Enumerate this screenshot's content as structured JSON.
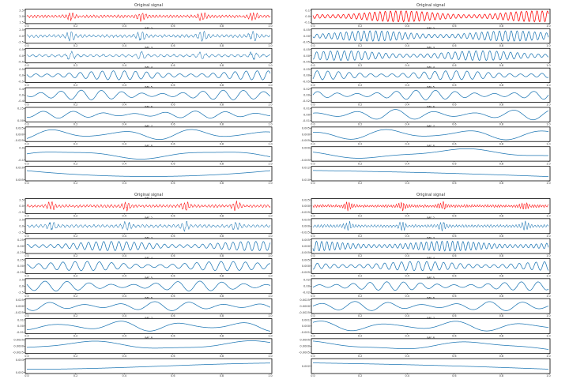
{
  "colors": {
    "original": "#ff0000",
    "imf": "#1f77b4",
    "axis": "#000000",
    "text": "#333333"
  },
  "chart_data": [
    {
      "type": "line",
      "panel": "top-left",
      "title": "Original signal",
      "x_ticks": [
        "0.0",
        "0.2",
        "0.4",
        "0.6",
        "0.8",
        "1.0"
      ],
      "xlim": [
        0,
        1
      ],
      "rows": [
        {
          "label": "",
          "y_ticks": [
            "2.5",
            "2.0",
            "1.5"
          ],
          "color": "original",
          "kind": "bursts",
          "freq": 70,
          "amp": 0.85,
          "bursts": [
            0.18,
            0.47,
            0.72,
            0.93
          ]
        },
        {
          "label": "IMF 2",
          "y_ticks": [
            "2.5",
            "0.0",
            "-2.5"
          ],
          "color": "imf",
          "kind": "bursts",
          "freq": 55,
          "amp": 0.9,
          "bursts": [
            0.18,
            0.47,
            0.72,
            0.93
          ]
        },
        {
          "label": "IMF 3",
          "y_ticks": [
            "0.5",
            "0.0",
            "-0.5"
          ],
          "color": "imf",
          "kind": "bursts",
          "freq": 38,
          "amp": 0.8,
          "bursts": [
            0.18,
            0.47,
            0.72,
            0.93
          ]
        },
        {
          "label": "IMF 4",
          "y_ticks": [
            "0.5",
            "0.0",
            "-0.5"
          ],
          "color": "imf",
          "kind": "wave",
          "freq": 22,
          "amp": 0.7
        },
        {
          "label": "IMF 5",
          "y_ticks": [
            "0.4",
            "0.0",
            "-0.4"
          ],
          "color": "imf",
          "kind": "wave",
          "freq": 12,
          "amp": 0.75
        },
        {
          "label": "IMF 6",
          "y_ticks": [
            "0.25",
            "0.00"
          ],
          "color": "imf",
          "kind": "wave",
          "freq": 8,
          "amp": 0.55
        },
        {
          "label": "IMF 7",
          "y_ticks": [
            "0.025",
            "0.000",
            "-0.025"
          ],
          "color": "imf",
          "kind": "wave",
          "freq": 3.5,
          "amp": 0.85
        },
        {
          "label": "IMF 8",
          "y_ticks": [
            "0.0",
            "-0.1"
          ],
          "color": "imf",
          "kind": "wave",
          "freq": 1.6,
          "amp": 0.8
        },
        {
          "label": "",
          "y_ticks": [
            "0.010",
            "0.005"
          ],
          "color": "imf",
          "kind": "trend",
          "shape": "u"
        }
      ]
    },
    {
      "type": "line",
      "panel": "top-right",
      "title": "Original signal",
      "x_ticks": [
        "0.0",
        "0.2",
        "0.4",
        "0.6",
        "0.8",
        "1.0"
      ],
      "xlim": [
        0,
        1
      ],
      "rows": [
        {
          "label": "",
          "y_ticks": [
            "0.1",
            "0.0",
            "-0.1"
          ],
          "color": "original",
          "kind": "wave",
          "freq": 45,
          "amp": 0.85
        },
        {
          "label": "IMF 2",
          "y_ticks": [
            "0.05",
            "0.00",
            "-0.05"
          ],
          "color": "imf",
          "kind": "wave",
          "freq": 40,
          "amp": 0.8
        },
        {
          "label": "IMF 3",
          "y_ticks": [
            "0.05",
            "0.00",
            "-0.05"
          ],
          "color": "imf",
          "kind": "wave",
          "freq": 34,
          "amp": 0.75
        },
        {
          "label": "IMF 4",
          "y_ticks": [
            "0.05",
            "0.00",
            "-0.05"
          ],
          "color": "imf",
          "kind": "wave",
          "freq": 22,
          "amp": 0.7
        },
        {
          "label": "IMF 5",
          "y_ticks": [
            "0.02",
            "0.00",
            "-0.02"
          ],
          "color": "imf",
          "kind": "wave",
          "freq": 12,
          "amp": 0.75
        },
        {
          "label": "IMF 6",
          "y_ticks": [
            "0.01",
            "0.00",
            "-0.01"
          ],
          "color": "imf",
          "kind": "wave",
          "freq": 6,
          "amp": 0.8
        },
        {
          "label": "IMF 7",
          "y_ticks": [
            "0.005",
            "0.000",
            "-0.005"
          ],
          "color": "imf",
          "kind": "wave",
          "freq": 3,
          "amp": 0.85
        },
        {
          "label": "IMF 8",
          "y_ticks": [
            "0.000",
            "-0.005"
          ],
          "color": "imf",
          "kind": "wave",
          "freq": 1.3,
          "amp": 0.85
        },
        {
          "label": "",
          "y_ticks": [
            "0.012",
            "0.010"
          ],
          "color": "imf",
          "kind": "trend",
          "shape": "down"
        }
      ]
    },
    {
      "type": "line",
      "panel": "bottom-left",
      "title": "Original signal",
      "x_ticks": [
        "0.0",
        "0.2",
        "0.4",
        "0.6",
        "0.8",
        "1.0"
      ],
      "xlim": [
        0,
        1
      ],
      "rows": [
        {
          "label": "IMF 1",
          "y_ticks": [
            "2.5",
            "0.0",
            "-2.5"
          ],
          "color": "original",
          "kind": "bursts",
          "freq": 70,
          "amp": 0.8,
          "bursts": [
            0.1,
            0.41,
            0.65,
            0.86
          ]
        },
        {
          "label": "IMF 2",
          "y_ticks": [
            "2.5",
            "0.0",
            "-2.5"
          ],
          "color": "imf",
          "kind": "bursts",
          "freq": 55,
          "amp": 0.85,
          "bursts": [
            0.1,
            0.41,
            0.65,
            0.86
          ]
        },
        {
          "label": "IMF 3",
          "y_ticks": [
            "0.25",
            "0.00",
            "-0.25"
          ],
          "color": "imf",
          "kind": "wave",
          "freq": 32,
          "amp": 0.7
        },
        {
          "label": "IMF 4",
          "y_ticks": [
            "0.25",
            "0.00",
            "-0.25"
          ],
          "color": "imf",
          "kind": "wave",
          "freq": 20,
          "amp": 0.7
        },
        {
          "label": "IMF 5",
          "y_ticks": [
            "2.5",
            "0.0",
            "-2.5"
          ],
          "color": "imf",
          "kind": "wave",
          "freq": 11,
          "amp": 0.75
        },
        {
          "label": "IMF 6",
          "y_ticks": [
            "0.025",
            "0.000",
            "-0.025"
          ],
          "color": "imf",
          "kind": "wave",
          "freq": 7,
          "amp": 0.7
        },
        {
          "label": "IMF 7",
          "y_ticks": [
            "0.01",
            "0.00",
            "-0.01"
          ],
          "color": "imf",
          "kind": "wave",
          "freq": 4,
          "amp": 0.8
        },
        {
          "label": "IMF 8",
          "y_ticks": [
            "0.0025",
            "0.0000",
            "-0.0025"
          ],
          "color": "imf",
          "kind": "wave",
          "freq": 1.5,
          "amp": 0.8
        },
        {
          "label": "",
          "y_ticks": [
            "0.003",
            "0.002"
          ],
          "color": "imf",
          "kind": "trend",
          "shape": "up"
        }
      ]
    },
    {
      "type": "line",
      "panel": "bottom-right",
      "title": "Original signal",
      "x_ticks": [
        "0.0",
        "0.2",
        "0.4",
        "0.6",
        "0.8",
        "1.0"
      ],
      "xlim": [
        0,
        1
      ],
      "rows": [
        {
          "label": "",
          "y_ticks": [
            "0.025",
            "0.000",
            "-0.025"
          ],
          "color": "original",
          "kind": "bursts",
          "freq": 90,
          "amp": 0.8,
          "bursts": [
            0.15,
            0.38,
            0.55,
            0.9
          ]
        },
        {
          "label": "IMF 2",
          "y_ticks": [
            "0.025",
            "0.000",
            "-0.025"
          ],
          "color": "imf",
          "kind": "bursts",
          "freq": 75,
          "amp": 0.8,
          "bursts": [
            0.15,
            0.38,
            0.55,
            0.9
          ]
        },
        {
          "label": "IMF 3",
          "y_ticks": [
            "0.005",
            "0.000",
            "-0.005"
          ],
          "color": "imf",
          "kind": "wave",
          "freq": 45,
          "amp": 0.75
        },
        {
          "label": "IMF 4",
          "y_ticks": [
            "0.005",
            "0.000",
            "-0.005"
          ],
          "color": "imf",
          "kind": "wave",
          "freq": 28,
          "amp": 0.7
        },
        {
          "label": "IMF 5",
          "y_ticks": [
            "0.02",
            "0.00",
            "-0.02"
          ],
          "color": "imf",
          "kind": "wave",
          "freq": 14,
          "amp": 0.65
        },
        {
          "label": "IMF 6",
          "y_ticks": [
            "0.0025",
            "0.0000",
            "-0.0025"
          ],
          "color": "imf",
          "kind": "wave",
          "freq": 7,
          "amp": 0.7
        },
        {
          "label": "IMF 7",
          "y_ticks": [
            "0.001",
            "0.000",
            "-0.001"
          ],
          "color": "imf",
          "kind": "wave",
          "freq": 3.5,
          "amp": 0.8
        },
        {
          "label": "IMF 8",
          "y_ticks": [
            "0.0005",
            "0.0000",
            "-0.0005"
          ],
          "color": "imf",
          "kind": "wave",
          "freq": 1.4,
          "amp": 0.8
        },
        {
          "label": "",
          "y_ticks": [
            "0.002"
          ],
          "color": "imf",
          "kind": "trend",
          "shape": "down"
        }
      ]
    }
  ]
}
